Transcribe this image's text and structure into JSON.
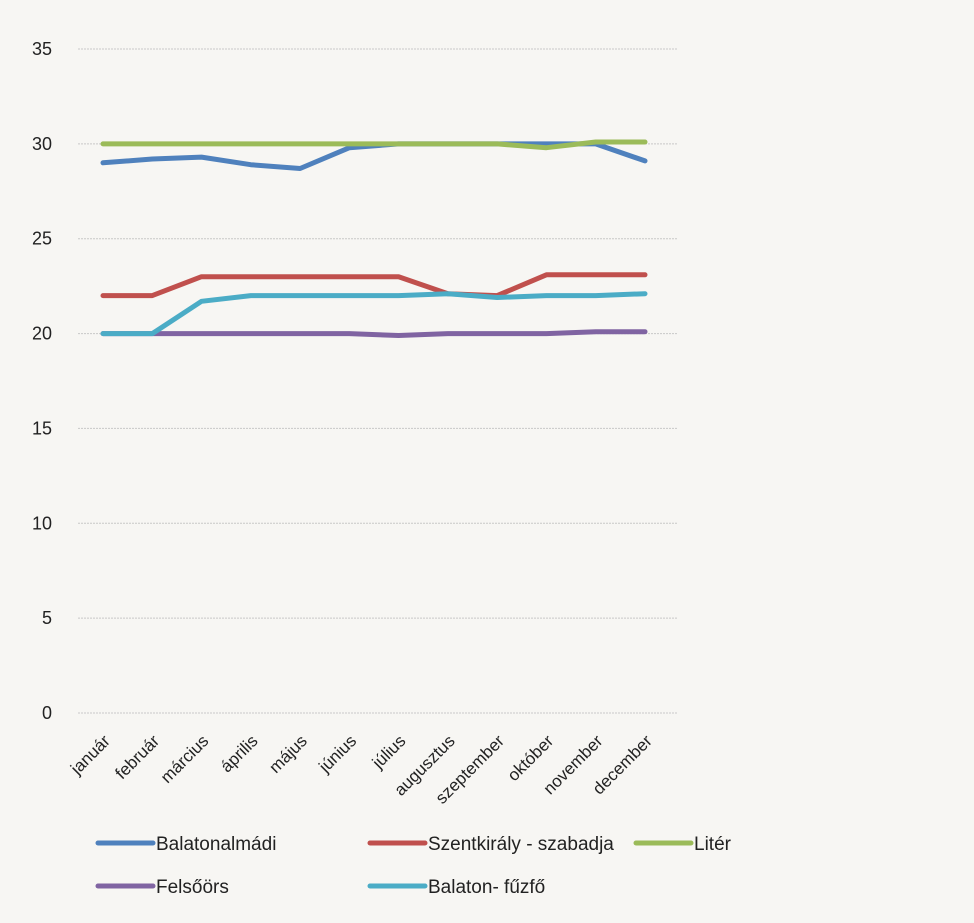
{
  "chart_data": {
    "type": "line",
    "title": "",
    "xlabel": "",
    "ylabel": "",
    "ylim": [
      0,
      35
    ],
    "yticks": [
      0,
      5,
      10,
      15,
      20,
      25,
      30,
      35
    ],
    "grid": true,
    "legend_position": "bottom",
    "categories": [
      "január",
      "február",
      "március",
      "április",
      "május",
      "június",
      "július",
      "augusztus",
      "szeptember",
      "október",
      "november",
      "december"
    ],
    "series": [
      {
        "name": "Balatonalmádi",
        "color": "#4f81bd",
        "values": [
          29,
          29.2,
          29.3,
          28.9,
          28.7,
          29.8,
          30,
          30,
          30,
          30,
          30,
          29.1
        ]
      },
      {
        "name": "Szentkirály - szabadja",
        "color": "#c0504d",
        "values": [
          22,
          22,
          23,
          23,
          23,
          23,
          23,
          22.1,
          22,
          23.1,
          23.1,
          23.1
        ]
      },
      {
        "name": "Litér",
        "color": "#9bbb59",
        "values": [
          30,
          30,
          30,
          30,
          30,
          30,
          30,
          30,
          30,
          29.8,
          30.1,
          30.1
        ]
      },
      {
        "name": "Felsőörs",
        "color": "#8064a2",
        "values": [
          20,
          20,
          20,
          20,
          20,
          20,
          19.9,
          20,
          20,
          20,
          20.1,
          20.1
        ]
      },
      {
        "name": "Balaton-  fűzfő",
        "color": "#4bacc6",
        "values": [
          20,
          20,
          21.7,
          22,
          22,
          22,
          22,
          22.1,
          21.9,
          22,
          22,
          22.1
        ]
      }
    ]
  }
}
